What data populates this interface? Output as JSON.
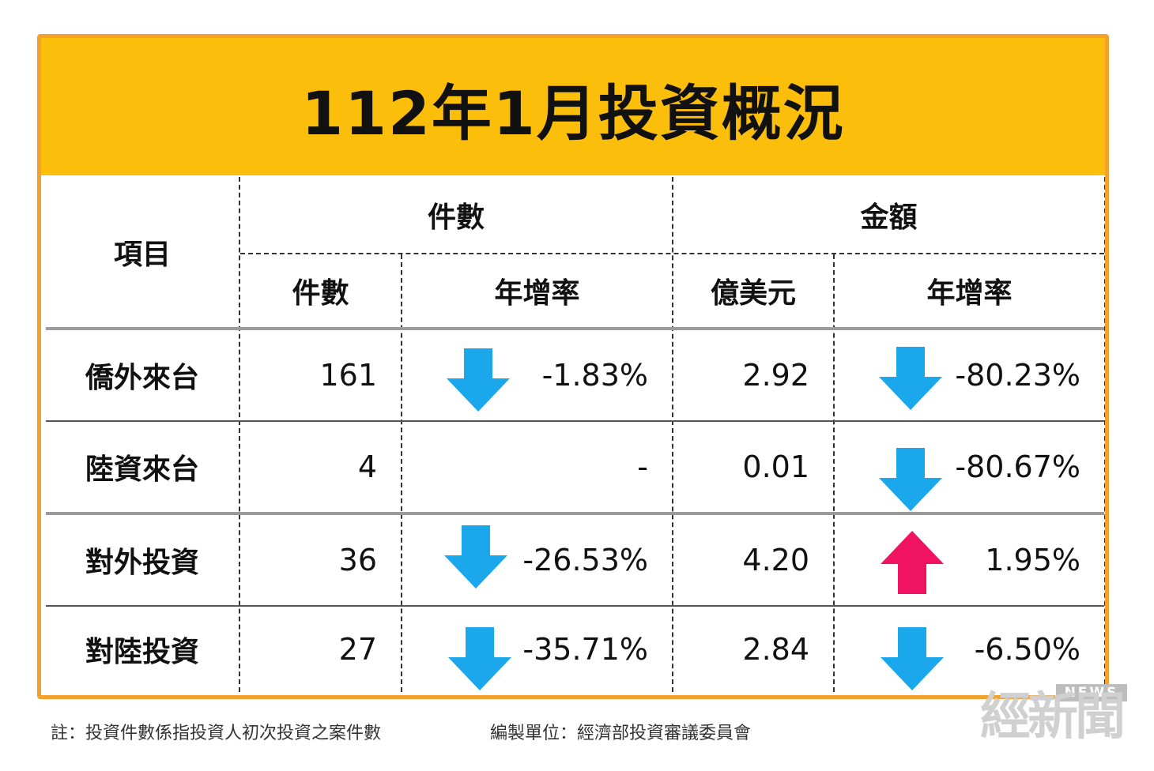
{
  "title": "112年1月投資概況",
  "header": {
    "item": "項目",
    "group_count": "件數",
    "group_amount": "金額",
    "sub_count": "件數",
    "sub_count_growth": "年增率",
    "sub_amount": "億美元",
    "sub_amount_growth": "年增率"
  },
  "rows": [
    {
      "item": "僑外來台",
      "count": "161",
      "count_growth": "-1.83%",
      "count_trend": "down",
      "amount": "2.92",
      "amount_growth": "-80.23%",
      "amount_trend": "down"
    },
    {
      "item": "陸資來台",
      "count": "4",
      "count_growth": "-",
      "count_trend": "none",
      "amount": "0.01",
      "amount_growth": "-80.67%",
      "amount_trend": "down"
    },
    {
      "item": "對外投資",
      "count": "36",
      "count_growth": "-26.53%",
      "count_trend": "down",
      "amount": "4.20",
      "amount_growth": "1.95%",
      "amount_trend": "up"
    },
    {
      "item": "對陸投資",
      "count": "27",
      "count_growth": "-35.71%",
      "count_trend": "down",
      "amount": "2.84",
      "amount_growth": "-6.50%",
      "amount_trend": "down"
    }
  ],
  "footer": {
    "note": "註：投資件數係指投資人初次投資之案件數",
    "source": "編製單位：經濟部投資審議委員會"
  },
  "logo": {
    "badge": "NEWS",
    "text": "經新聞"
  },
  "colors": {
    "frame": "#f4a02c",
    "title_band": "#fbbf0b",
    "down_arrow": "#1aa7ec",
    "up_arrow": "#f0135f"
  }
}
